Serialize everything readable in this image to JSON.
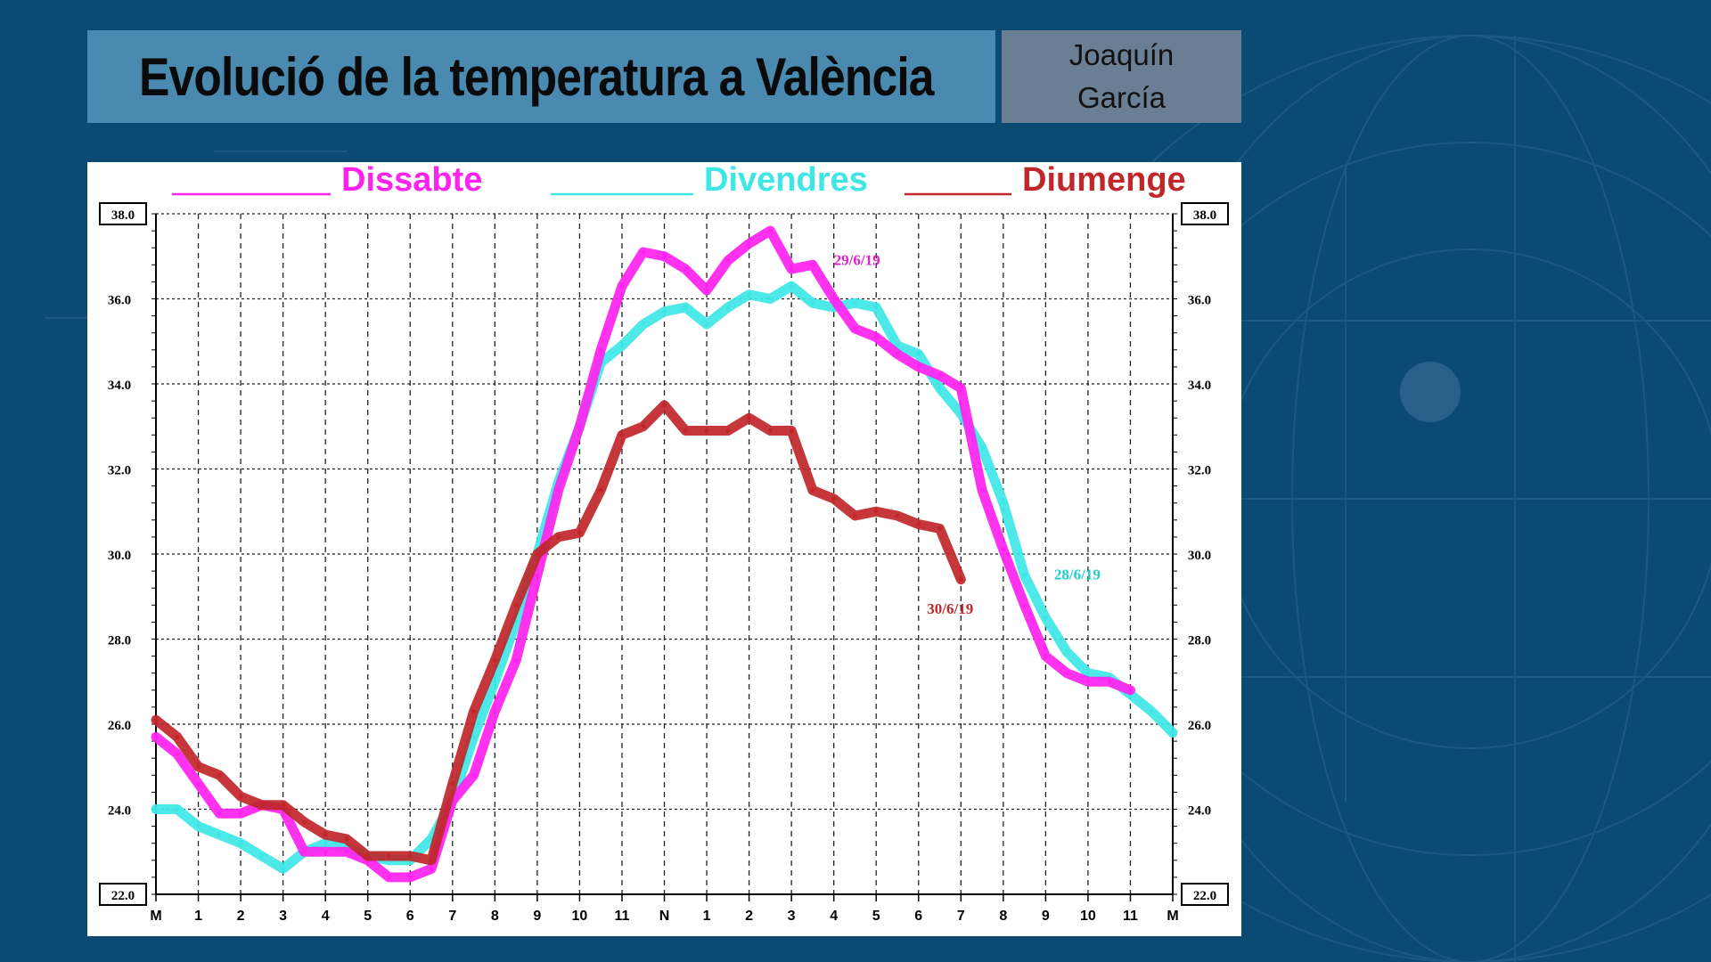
{
  "header": {
    "title": "Evolució de la temperatura a València",
    "author_first": "Joaquín",
    "author_last": "García"
  },
  "chart_data": {
    "type": "line",
    "title": "Evolució de la temperatura a València",
    "xlabel": "",
    "ylabel": "",
    "xlim": [
      0,
      24
    ],
    "ylim": [
      22,
      38
    ],
    "grid": true,
    "legend_placement": "top",
    "x_tick_labels": [
      "M",
      "1",
      "2",
      "3",
      "4",
      "5",
      "6",
      "7",
      "8",
      "9",
      "10",
      "11",
      "N",
      "1",
      "2",
      "3",
      "4",
      "5",
      "6",
      "7",
      "8",
      "9",
      "10",
      "11",
      "M"
    ],
    "y_ticks": [
      "22.0",
      "24.0",
      "26.0",
      "28.0",
      "30.0",
      "32.0",
      "34.0",
      "36.0",
      "38.0"
    ],
    "series": [
      {
        "name": "Divendres",
        "color": "#3ee6e6",
        "annotation": "28/6/19",
        "annotation_color": "#22cccc",
        "annotation_at": [
          21.2,
          29.4
        ],
        "x": [
          0,
          0.5,
          1,
          1.5,
          2,
          2.5,
          3,
          3.5,
          4,
          4.5,
          5,
          5.5,
          6,
          6.5,
          7,
          7.5,
          8,
          8.5,
          9,
          9.5,
          10,
          10.5,
          11,
          11.5,
          12,
          12.5,
          13,
          13.5,
          14,
          14.5,
          15,
          15.5,
          16,
          16.5,
          17,
          17.5,
          18,
          18.5,
          19,
          19.5,
          20,
          20.5,
          21,
          21.5,
          22,
          22.5,
          23,
          23.5,
          24
        ],
        "values": [
          24.0,
          24.0,
          23.6,
          23.4,
          23.2,
          22.9,
          22.6,
          23.0,
          23.2,
          23.1,
          22.9,
          22.8,
          22.8,
          23.3,
          24.2,
          25.7,
          27.0,
          28.4,
          30.0,
          31.7,
          33.0,
          34.5,
          34.9,
          35.4,
          35.7,
          35.8,
          35.4,
          35.8,
          36.1,
          36.0,
          36.3,
          35.9,
          35.8,
          35.9,
          35.8,
          34.9,
          34.7,
          33.9,
          33.3,
          32.5,
          31.2,
          29.5,
          28.5,
          27.7,
          27.2,
          27.1,
          26.7,
          26.3,
          25.8
        ]
      },
      {
        "name": "Dissabte",
        "color": "#ff22ee",
        "annotation": "29/6/19",
        "annotation_color": "#e020c8",
        "annotation_at": [
          16.0,
          36.8
        ],
        "x": [
          0,
          0.5,
          1,
          1.5,
          2,
          2.5,
          3,
          3.5,
          4,
          4.5,
          5,
          5.5,
          6,
          6.5,
          7,
          7.5,
          8,
          8.5,
          9,
          9.5,
          10,
          10.5,
          11,
          11.5,
          12,
          12.5,
          13,
          13.5,
          14,
          14.5,
          15,
          15.5,
          16,
          16.5,
          17,
          17.5,
          18,
          18.5,
          19,
          19.5,
          20,
          20.5,
          21,
          21.5,
          22,
          22.5,
          23
        ],
        "values": [
          25.7,
          25.3,
          24.6,
          23.9,
          23.9,
          24.1,
          24.0,
          23.0,
          23.0,
          23.0,
          22.8,
          22.4,
          22.4,
          22.6,
          24.2,
          24.8,
          26.3,
          27.5,
          29.5,
          31.5,
          33.0,
          34.8,
          36.3,
          37.1,
          37.0,
          36.7,
          36.2,
          36.9,
          37.3,
          37.6,
          36.7,
          36.8,
          36.0,
          35.3,
          35.1,
          34.7,
          34.4,
          34.2,
          33.9,
          31.5,
          30.1,
          28.8,
          27.6,
          27.2,
          27.0,
          27.0,
          26.8
        ]
      },
      {
        "name": "Diumenge",
        "color": "#c0262a",
        "annotation": "30/6/19",
        "annotation_color": "#c0262a",
        "annotation_at": [
          18.2,
          28.6
        ],
        "x": [
          0,
          0.5,
          1,
          1.5,
          2,
          2.5,
          3,
          3.5,
          4,
          4.5,
          5,
          5.5,
          6,
          6.5,
          7,
          7.5,
          8,
          8.5,
          9,
          9.5,
          10,
          10.5,
          11,
          11.5,
          12,
          12.5,
          13,
          13.5,
          14,
          14.5,
          15,
          15.5,
          16,
          16.5,
          17,
          17.5,
          18,
          18.5,
          19
        ],
        "values": [
          26.1,
          25.7,
          25.0,
          24.8,
          24.3,
          24.1,
          24.1,
          23.7,
          23.4,
          23.3,
          22.9,
          22.9,
          22.9,
          22.8,
          24.6,
          26.3,
          27.5,
          28.8,
          30.0,
          30.4,
          30.5,
          31.5,
          32.8,
          33.0,
          33.5,
          32.9,
          32.9,
          32.9,
          33.2,
          32.9,
          32.9,
          31.5,
          31.3,
          30.9,
          31.0,
          30.9,
          30.7,
          30.6,
          29.4
        ]
      }
    ],
    "legend_order": [
      "Dissabte",
      "Divendres",
      "Diumenge"
    ]
  }
}
